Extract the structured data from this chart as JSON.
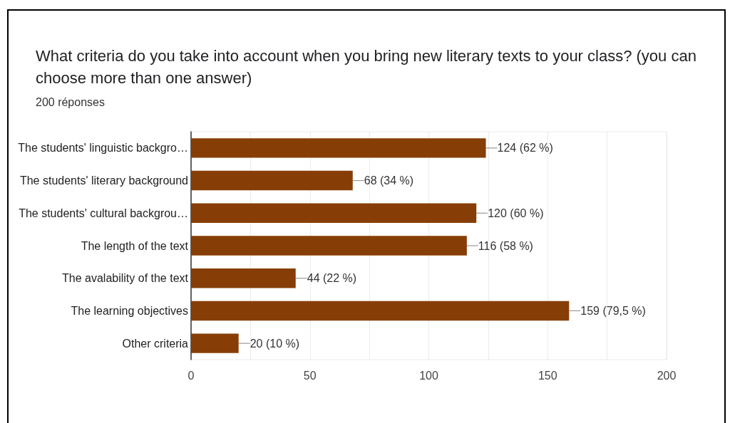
{
  "chart_data": {
    "type": "bar",
    "orientation": "horizontal",
    "title": "What criteria do you take into account when you bring new literary texts to your class? (you can choose more than one answer)",
    "subtitle": "200 réponses",
    "categories": [
      "The students' linguistic backgro…",
      "The students' literary background",
      "The students' cultural backgrou…",
      "The length of the text",
      "The avalability of the text",
      "The learning objectives",
      "Other criteria"
    ],
    "values": [
      124,
      68,
      120,
      116,
      44,
      159,
      20
    ],
    "value_labels": [
      "124 (62 %)",
      "68 (34 %)",
      "120 (60 %)",
      "116 (58 %)",
      "44 (22 %)",
      "159 (79,5 %)",
      "20 (10 %)"
    ],
    "color": "#873e06",
    "xlim": [
      0,
      200
    ],
    "xticks": [
      0,
      {
        "value": 25,
        "label": null
      },
      50,
      {
        "value": 75,
        "label": null
      },
      100,
      {
        "value": 125,
        "label": null
      },
      150,
      {
        "value": 175,
        "label": null
      },
      200
    ],
    "grid": "x"
  }
}
